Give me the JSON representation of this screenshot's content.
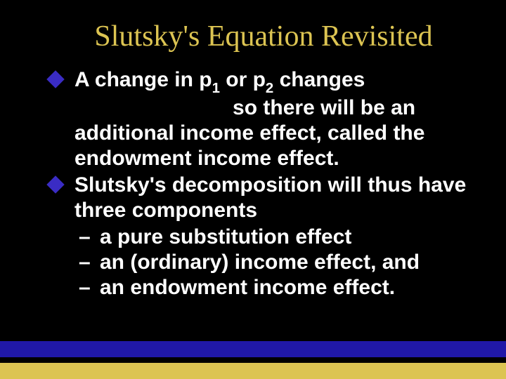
{
  "colors": {
    "background": "#000000",
    "title": "#dcc452",
    "body_text": "#ffffff",
    "bullet_marker": "#3a2cc4",
    "band_blue": "#2018a8",
    "band_gold": "#dcc452"
  },
  "title": "Slutsky's Equation Revisited",
  "bullets": [
    {
      "level": 1,
      "segments": [
        {
          "t": "A change in p"
        },
        {
          "t": "1",
          "sub": true
        },
        {
          "t": " or p"
        },
        {
          "t": "2",
          "sub": true
        },
        {
          "t": " changes"
        }
      ],
      "cont": "so there will be an additional income effect, called the endowment income effect.",
      "cont_leading_pad": "                           "
    },
    {
      "level": 1,
      "segments": [
        {
          "t": "Slutsky's decomposition will thus have three components"
        }
      ]
    },
    {
      "level": 2,
      "segments": [
        {
          "t": "a pure substitution effect"
        }
      ]
    },
    {
      "level": 2,
      "segments": [
        {
          "t": "an (ordinary) income effect, and"
        }
      ]
    },
    {
      "level": 2,
      "segments": [
        {
          "t": "an endowment income effect."
        }
      ]
    }
  ],
  "dash": "–"
}
